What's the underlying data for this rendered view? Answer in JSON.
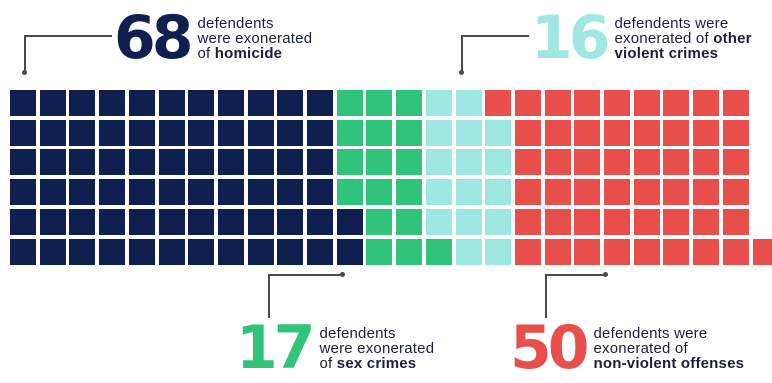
{
  "chart_data": {
    "type": "waffle",
    "colors": {
      "homicide": "#0f1f4f",
      "other_violent": "#9ee8e1",
      "sex_crimes": "#2fc47a",
      "non_violent": "#e84e4a"
    },
    "categories": [
      {
        "key": "homicide",
        "value": 68,
        "value_label": "68",
        "line1": "defendents",
        "line2": "were exonerated",
        "line3_prefix": "of ",
        "line3_bold": "homicide"
      },
      {
        "key": "sex_crimes",
        "value": 17,
        "value_label": "17",
        "line1": "defendents",
        "line2": "were exonerated",
        "line3_prefix": "of ",
        "line3_bold": "sex crimes"
      },
      {
        "key": "other_violent",
        "value": 16,
        "value_label": "16",
        "line1": "defendents were",
        "line2_prefix": "exonerated of ",
        "line2_bold": "other",
        "line3_bold": "violent crimes"
      },
      {
        "key": "non_violent",
        "value": 50,
        "value_label": "50",
        "line1": "defendents were",
        "line2": "exonerated of",
        "line3_bold": "non-violent offenses"
      }
    ]
  }
}
